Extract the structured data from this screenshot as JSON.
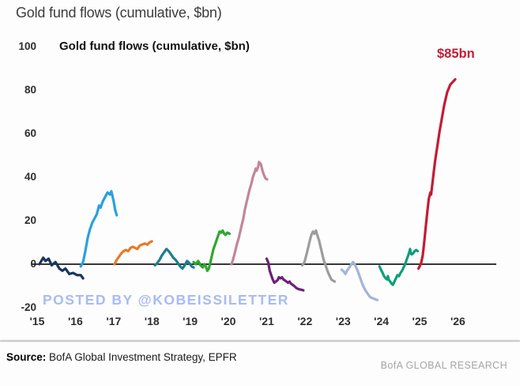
{
  "page": {
    "title": "Gold fund flows (cumulative, $bn)",
    "watermark": "POSTED BY @KOBEISSILETTER",
    "source_label": "Source:",
    "source_text": " BofA Global Investment Strategy, EPFR",
    "brand": "BofA GLOBAL RESEARCH"
  },
  "chart_data": {
    "type": "line",
    "title": "Gold fund flows (cumulative, $bn)",
    "xlabel": "",
    "ylabel": "",
    "xlim": [
      2014.85,
      2026.6
    ],
    "ylim": [
      -20,
      100
    ],
    "grid": false,
    "legend": "none",
    "zero_line": true,
    "yticks": [
      100,
      80,
      60,
      40,
      20,
      0,
      -20
    ],
    "xticks": [
      {
        "year": 2015,
        "label": "'15"
      },
      {
        "year": 2016,
        "label": "'16"
      },
      {
        "year": 2017,
        "label": "'17"
      },
      {
        "year": 2018,
        "label": "'18"
      },
      {
        "year": 2019,
        "label": "'19"
      },
      {
        "year": 2020,
        "label": "'20"
      },
      {
        "year": 2021,
        "label": "'21"
      },
      {
        "year": 2022,
        "label": "'22"
      },
      {
        "year": 2023,
        "label": "'23"
      },
      {
        "year": 2024,
        "label": "'24"
      },
      {
        "year": 2025,
        "label": "'25"
      },
      {
        "year": 2026,
        "label": "'26"
      }
    ],
    "annotation": {
      "text": "$85bn",
      "color": "#c21c36",
      "x": 2025.9,
      "y": 96
    },
    "series": [
      {
        "name": "2015",
        "color": "#17355f",
        "points": [
          [
            2015.06,
            0
          ],
          [
            2015.16,
            3
          ],
          [
            2015.22,
            1.5
          ],
          [
            2015.3,
            2.5
          ],
          [
            2015.38,
            -0.5
          ],
          [
            2015.48,
            1
          ],
          [
            2015.58,
            -2
          ],
          [
            2015.66,
            -3
          ],
          [
            2015.74,
            -2
          ],
          [
            2015.84,
            -4.5
          ],
          [
            2015.94,
            -4
          ],
          [
            2016.04,
            -5
          ],
          [
            2016.14,
            -5
          ],
          [
            2016.2,
            -6.5
          ]
        ]
      },
      {
        "name": "2016",
        "color": "#2ba0dc",
        "points": [
          [
            2016.14,
            -1
          ],
          [
            2016.2,
            1
          ],
          [
            2016.26,
            6
          ],
          [
            2016.32,
            12
          ],
          [
            2016.38,
            16
          ],
          [
            2016.44,
            19
          ],
          [
            2016.5,
            21
          ],
          [
            2016.56,
            23
          ],
          [
            2016.62,
            27
          ],
          [
            2016.66,
            26
          ],
          [
            2016.72,
            29
          ],
          [
            2016.78,
            31
          ],
          [
            2016.84,
            33
          ],
          [
            2016.9,
            32
          ],
          [
            2016.94,
            33.5
          ],
          [
            2017.0,
            29
          ],
          [
            2017.04,
            25
          ],
          [
            2017.08,
            22.5
          ]
        ]
      },
      {
        "name": "2017",
        "color": "#e87a28",
        "points": [
          [
            2017.02,
            0
          ],
          [
            2017.08,
            2
          ],
          [
            2017.14,
            3.5
          ],
          [
            2017.2,
            5
          ],
          [
            2017.26,
            6
          ],
          [
            2017.32,
            6.5
          ],
          [
            2017.38,
            6
          ],
          [
            2017.44,
            7.5
          ],
          [
            2017.5,
            8
          ],
          [
            2017.56,
            7.5
          ],
          [
            2017.62,
            7
          ],
          [
            2017.68,
            8.5
          ],
          [
            2017.74,
            9
          ],
          [
            2017.82,
            9.5
          ],
          [
            2017.88,
            9
          ],
          [
            2017.94,
            10
          ],
          [
            2018.0,
            10.5
          ]
        ]
      },
      {
        "name": "2018",
        "color": "#1b7f8e",
        "points": [
          [
            2018.08,
            -0.5
          ],
          [
            2018.14,
            0.5
          ],
          [
            2018.2,
            2
          ],
          [
            2018.26,
            4
          ],
          [
            2018.32,
            5.5
          ],
          [
            2018.38,
            7
          ],
          [
            2018.44,
            6
          ],
          [
            2018.5,
            4.5
          ],
          [
            2018.56,
            3
          ],
          [
            2018.62,
            2
          ],
          [
            2018.68,
            0.5
          ],
          [
            2018.74,
            -1
          ],
          [
            2018.8,
            -2
          ],
          [
            2018.86,
            -0.5
          ],
          [
            2018.92,
            1.5
          ],
          [
            2018.98,
            0.5
          ],
          [
            2019.04,
            -1
          ],
          [
            2019.09,
            -1.5
          ]
        ]
      },
      {
        "name": "2019",
        "color": "#2ea82e",
        "points": [
          [
            2019.09,
            1
          ],
          [
            2019.15,
            0
          ],
          [
            2019.21,
            1.5
          ],
          [
            2019.27,
            -0.5
          ],
          [
            2019.33,
            -1.5
          ],
          [
            2019.37,
            0
          ],
          [
            2019.41,
            -1
          ],
          [
            2019.45,
            -3
          ],
          [
            2019.49,
            -2
          ],
          [
            2019.53,
            1
          ],
          [
            2019.57,
            4
          ],
          [
            2019.61,
            7
          ],
          [
            2019.65,
            9
          ],
          [
            2019.69,
            11
          ],
          [
            2019.73,
            13
          ],
          [
            2019.77,
            15
          ],
          [
            2019.81,
            14.5
          ],
          [
            2019.85,
            15.5
          ],
          [
            2019.89,
            14
          ],
          [
            2019.93,
            13.5
          ],
          [
            2019.97,
            14.5
          ],
          [
            2020.03,
            14
          ]
        ]
      },
      {
        "name": "2020",
        "color": "#c0869c",
        "points": [
          [
            2020.08,
            0
          ],
          [
            2020.12,
            2
          ],
          [
            2020.18,
            6
          ],
          [
            2020.22,
            9
          ],
          [
            2020.27,
            12
          ],
          [
            2020.31,
            15
          ],
          [
            2020.35,
            18
          ],
          [
            2020.39,
            21
          ],
          [
            2020.43,
            25
          ],
          [
            2020.47,
            28
          ],
          [
            2020.51,
            31
          ],
          [
            2020.55,
            34
          ],
          [
            2020.6,
            37
          ],
          [
            2020.64,
            40
          ],
          [
            2020.68,
            42
          ],
          [
            2020.72,
            44
          ],
          [
            2020.74,
            43
          ],
          [
            2020.78,
            45
          ],
          [
            2020.8,
            47
          ],
          [
            2020.85,
            46
          ],
          [
            2020.89,
            43
          ],
          [
            2020.93,
            41
          ],
          [
            2020.97,
            39.5
          ],
          [
            2021.01,
            39
          ]
        ]
      },
      {
        "name": "2021",
        "color": "#6b2078",
        "points": [
          [
            2021.0,
            2.5
          ],
          [
            2021.04,
            1
          ],
          [
            2021.06,
            -1
          ],
          [
            2021.08,
            -3
          ],
          [
            2021.12,
            -5
          ],
          [
            2021.16,
            -7
          ],
          [
            2021.2,
            -8.5
          ],
          [
            2021.24,
            -8
          ],
          [
            2021.28,
            -7.5
          ],
          [
            2021.32,
            -6
          ],
          [
            2021.36,
            -6.5
          ],
          [
            2021.4,
            -6
          ],
          [
            2021.44,
            -7
          ],
          [
            2021.48,
            -7.5
          ],
          [
            2021.52,
            -8
          ],
          [
            2021.56,
            -8.5
          ],
          [
            2021.6,
            -8
          ],
          [
            2021.64,
            -9
          ],
          [
            2021.68,
            -9.5
          ],
          [
            2021.72,
            -10
          ],
          [
            2021.78,
            -11
          ],
          [
            2021.84,
            -11.5
          ],
          [
            2021.96,
            -12
          ]
        ]
      },
      {
        "name": "2022",
        "color": "#9c9c9c",
        "points": [
          [
            2021.93,
            -0.5
          ],
          [
            2021.99,
            1
          ],
          [
            2022.05,
            5
          ],
          [
            2022.09,
            8
          ],
          [
            2022.13,
            11
          ],
          [
            2022.17,
            13.5
          ],
          [
            2022.21,
            15
          ],
          [
            2022.25,
            14
          ],
          [
            2022.29,
            15.5
          ],
          [
            2022.33,
            13
          ],
          [
            2022.37,
            11
          ],
          [
            2022.41,
            8
          ],
          [
            2022.45,
            5
          ],
          [
            2022.49,
            2
          ],
          [
            2022.53,
            0
          ],
          [
            2022.57,
            -2
          ],
          [
            2022.61,
            -4
          ],
          [
            2022.65,
            -5.5
          ],
          [
            2022.69,
            -7
          ],
          [
            2022.73,
            -7.5
          ],
          [
            2022.78,
            -8
          ]
        ]
      },
      {
        "name": "2023",
        "color": "#a4b4d9",
        "points": [
          [
            2022.96,
            -2.5
          ],
          [
            2023.02,
            -3.5
          ],
          [
            2023.06,
            -4.5
          ],
          [
            2023.1,
            -3
          ],
          [
            2023.14,
            -2
          ],
          [
            2023.18,
            -1
          ],
          [
            2023.22,
            0
          ],
          [
            2023.26,
            1
          ],
          [
            2023.3,
            0
          ],
          [
            2023.34,
            -1.5
          ],
          [
            2023.38,
            -3
          ],
          [
            2023.42,
            -5
          ],
          [
            2023.46,
            -7
          ],
          [
            2023.5,
            -9
          ],
          [
            2023.54,
            -10.5
          ],
          [
            2023.58,
            -12
          ],
          [
            2023.62,
            -13
          ],
          [
            2023.66,
            -14
          ],
          [
            2023.7,
            -15
          ],
          [
            2023.75,
            -15.5
          ],
          [
            2023.82,
            -16
          ],
          [
            2023.89,
            -16.5
          ]
        ]
      },
      {
        "name": "2024",
        "color": "#0e9e79",
        "points": [
          [
            2023.95,
            -1
          ],
          [
            2023.99,
            -2.5
          ],
          [
            2024.03,
            -4
          ],
          [
            2024.07,
            -5.5
          ],
          [
            2024.11,
            -6.5
          ],
          [
            2024.15,
            -7
          ],
          [
            2024.17,
            -5.5
          ],
          [
            2024.19,
            -7
          ],
          [
            2024.23,
            -8
          ],
          [
            2024.27,
            -9
          ],
          [
            2024.3,
            -9.5
          ],
          [
            2024.34,
            -8
          ],
          [
            2024.38,
            -6.5
          ],
          [
            2024.42,
            -5
          ],
          [
            2024.46,
            -5.5
          ],
          [
            2024.5,
            -4
          ],
          [
            2024.54,
            -3
          ],
          [
            2024.58,
            -1.5
          ],
          [
            2024.62,
            0
          ],
          [
            2024.66,
            2
          ],
          [
            2024.7,
            4
          ],
          [
            2024.73,
            5.5
          ],
          [
            2024.75,
            7
          ],
          [
            2024.77,
            5
          ],
          [
            2024.79,
            4.5
          ],
          [
            2024.83,
            5
          ],
          [
            2024.87,
            6
          ],
          [
            2024.91,
            6.5
          ],
          [
            2024.95,
            6
          ]
        ]
      },
      {
        "name": "2025",
        "color": "#c21c36",
        "points": [
          [
            2024.97,
            -2
          ],
          [
            2025.0,
            -1
          ],
          [
            2025.04,
            0.5
          ],
          [
            2025.08,
            4
          ],
          [
            2025.12,
            10
          ],
          [
            2025.16,
            17
          ],
          [
            2025.2,
            24
          ],
          [
            2025.24,
            30
          ],
          [
            2025.28,
            33
          ],
          [
            2025.3,
            32
          ],
          [
            2025.32,
            35
          ],
          [
            2025.36,
            41
          ],
          [
            2025.4,
            47
          ],
          [
            2025.46,
            54
          ],
          [
            2025.52,
            61
          ],
          [
            2025.58,
            67
          ],
          [
            2025.64,
            73
          ],
          [
            2025.72,
            79
          ],
          [
            2025.8,
            82.5
          ],
          [
            2025.93,
            85
          ]
        ]
      }
    ]
  }
}
